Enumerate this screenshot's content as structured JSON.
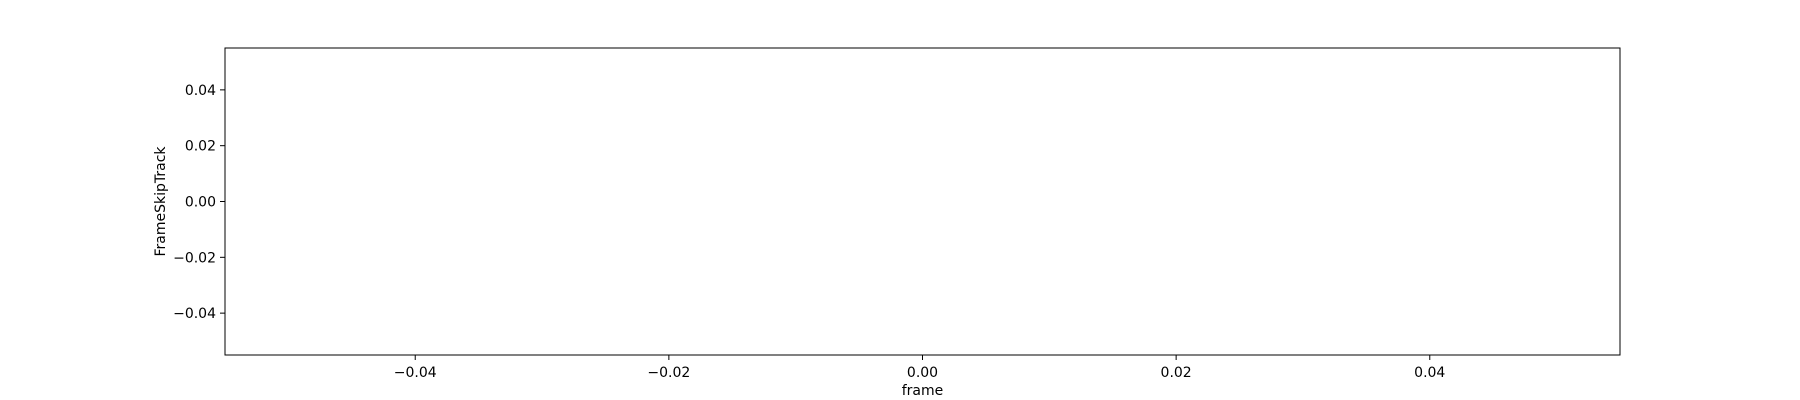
{
  "chart_data": {
    "type": "line",
    "title": "",
    "xlabel": "frame",
    "ylabel": "FrameSkipTrack",
    "xlim": [
      -0.055,
      0.055
    ],
    "ylim": [
      -0.055,
      0.055
    ],
    "xticks": [
      {
        "value": -0.04,
        "label": "−0.04"
      },
      {
        "value": -0.02,
        "label": "−0.02"
      },
      {
        "value": 0.0,
        "label": "0.00"
      },
      {
        "value": 0.02,
        "label": "0.02"
      },
      {
        "value": 0.04,
        "label": "0.04"
      }
    ],
    "yticks": [
      {
        "value": 0.04,
        "label": "0.04"
      },
      {
        "value": 0.02,
        "label": "0.02"
      },
      {
        "value": 0.0,
        "label": "0.00"
      },
      {
        "value": -0.02,
        "label": "−0.02"
      },
      {
        "value": -0.04,
        "label": "−0.04"
      }
    ],
    "series": [],
    "grid": false,
    "legend": "none"
  }
}
